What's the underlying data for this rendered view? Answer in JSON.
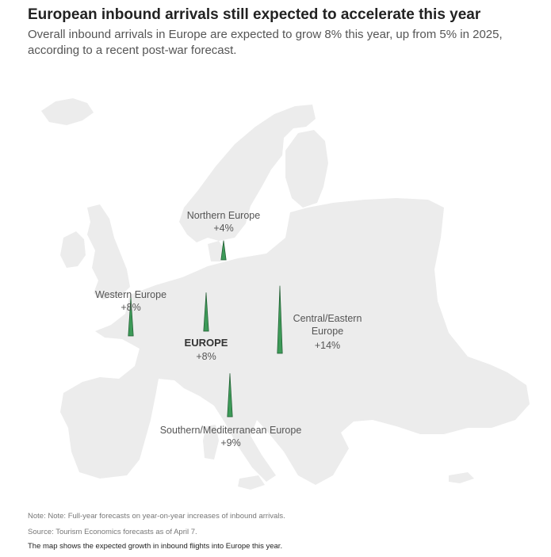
{
  "header": {
    "title": "European inbound arrivals still expected to accelerate this year",
    "subtitle": "Overall inbound arrivals in Europe are expected to grow 8% this year, up from 5% in 2025, according to a recent post-war forecast."
  },
  "map": {
    "land_color": "#ececec",
    "spike_color": "#3d9a58",
    "spike_outline": "#1f5a30",
    "regions": [
      {
        "id": "northern",
        "name": "Northern Europe",
        "value_label": "+4%",
        "growth": 4
      },
      {
        "id": "western",
        "name": "Western Europe",
        "value_label": "+8%",
        "growth": 8
      },
      {
        "id": "europe",
        "name": "EUROPE",
        "value_label": "+8%",
        "growth": 8
      },
      {
        "id": "central",
        "name_lines": [
          "Central/Eastern",
          "Europe"
        ],
        "value_label": "+14%",
        "growth": 14
      },
      {
        "id": "southern",
        "name": "Southern/Mediterranean Europe",
        "value_label": "+9%",
        "growth": 9
      }
    ]
  },
  "footer": {
    "note": "Note: Note: Full-year forecasts on year-on-year increases of inbound arrivals.",
    "source": "Source: Tourism Economics forecasts as of April 7.",
    "caption": "The map shows the expected growth in inbound flights into Europe this year."
  }
}
